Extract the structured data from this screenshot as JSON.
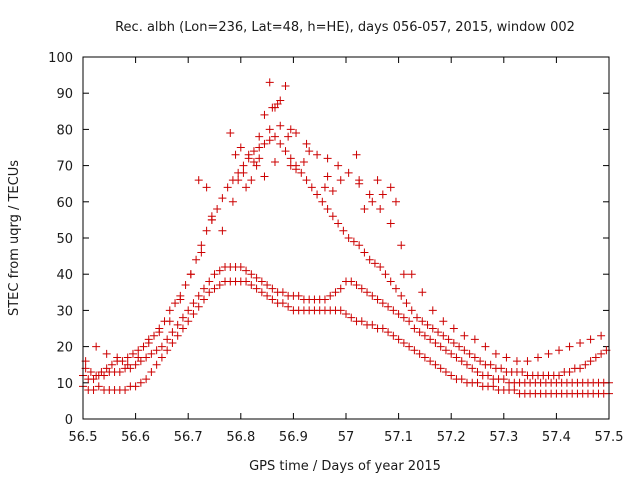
{
  "chart_data": {
    "type": "scatter",
    "title": "Rec. albh (Lon=236, Lat=48, h=HE), days 056-057, 2015, window 002",
    "xlabel": "GPS time / Days of year 2015",
    "ylabel": "STEC from uqrg / TECUs",
    "xlim": [
      56.5,
      57.5
    ],
    "ylim": [
      0,
      100
    ],
    "xticks": [
      56.5,
      56.6,
      56.7,
      56.8,
      56.9,
      57.0,
      57.1,
      57.2,
      57.3,
      57.4,
      57.5
    ],
    "xtick_labels": [
      "56.5",
      "56.6",
      "56.7",
      "56.8",
      "56.9",
      "57",
      "57.1",
      "57.2",
      "57.3",
      "57.4",
      "57.5"
    ],
    "yticks": [
      0,
      10,
      20,
      30,
      40,
      50,
      60,
      70,
      80,
      90,
      100
    ],
    "ytick_labels": [
      "0",
      "10",
      "20",
      "30",
      "40",
      "50",
      "60",
      "70",
      "80",
      "90",
      "100"
    ],
    "grid": false,
    "legend": "none",
    "marker": "plus",
    "color": "#cc0000",
    "series": [
      {
        "name": "STEC",
        "x": [
          56.5,
          56.51,
          56.52,
          56.53,
          56.54,
          56.55,
          56.56,
          56.57,
          56.58,
          56.59,
          56.6,
          56.61,
          56.62,
          56.63,
          56.64,
          56.65,
          56.66,
          56.67,
          56.68,
          56.69,
          56.7,
          56.71,
          56.72,
          56.73,
          56.74,
          56.75,
          56.76,
          56.77,
          56.78,
          56.79,
          56.8,
          56.81,
          56.82,
          56.83,
          56.84,
          56.85,
          56.86,
          56.87,
          56.88,
          56.89,
          56.9,
          56.91,
          56.92,
          56.93,
          56.94,
          56.95,
          56.96,
          56.97,
          56.98,
          56.99,
          57.0,
          57.01,
          57.02,
          57.03,
          57.04,
          57.05,
          57.06,
          57.07,
          57.08,
          57.09,
          57.1,
          57.11,
          57.12,
          57.13,
          57.14,
          57.15,
          57.16,
          57.17,
          57.18,
          57.19,
          57.2,
          57.21,
          57.22,
          57.23,
          57.24,
          57.25,
          57.26,
          57.27,
          57.28,
          57.29,
          57.3,
          57.31,
          57.32,
          57.33,
          57.34,
          57.35,
          57.36,
          57.37,
          57.38,
          57.39,
          57.4,
          57.41,
          57.42,
          57.43,
          57.44,
          57.45,
          57.46,
          57.47,
          57.48,
          57.49,
          57.5,
          56.5,
          56.51,
          56.52,
          56.53,
          56.54,
          56.55,
          56.56,
          56.57,
          56.58,
          56.59,
          56.6,
          56.61,
          56.62,
          56.63,
          56.64,
          56.65,
          56.66,
          56.67,
          56.68,
          56.69,
          56.7,
          56.71,
          56.72,
          56.73,
          56.74,
          56.75,
          56.76,
          56.77,
          56.78,
          56.79,
          56.8,
          56.81,
          56.82,
          56.83,
          56.84,
          56.85,
          56.86,
          56.87,
          56.88,
          56.89,
          56.9,
          56.91,
          56.92,
          56.93,
          56.94,
          56.95,
          56.96,
          56.97,
          56.98,
          56.99,
          57.0,
          57.01,
          57.02,
          57.03,
          57.04,
          57.05,
          57.06,
          57.07,
          57.08,
          57.09,
          57.1,
          57.11,
          57.12,
          57.13,
          57.14,
          57.15,
          57.16,
          57.17,
          57.18,
          57.19,
          57.2,
          57.21,
          57.22,
          57.23,
          57.24,
          57.25,
          57.26,
          57.27,
          57.28,
          57.29,
          57.3,
          57.31,
          57.32,
          57.33,
          57.34,
          57.35,
          57.36,
          57.37,
          57.38,
          57.39,
          57.4,
          57.41,
          57.42,
          57.43,
          57.44,
          57.45,
          57.46,
          57.47,
          57.48,
          57.49,
          57.5,
          56.505,
          56.515,
          56.525,
          56.535,
          56.545,
          56.555,
          56.565,
          56.575,
          56.585,
          56.595,
          56.605,
          56.615,
          56.625,
          56.635,
          56.645,
          56.655,
          56.665,
          56.675,
          56.685,
          56.695,
          56.705,
          56.715,
          56.725,
          56.735,
          56.745,
          56.755,
          56.765,
          56.775,
          56.785,
          56.795,
          56.805,
          56.815,
          56.825,
          56.835,
          56.845,
          56.855,
          56.865,
          56.875,
          56.885,
          56.895,
          56.905,
          56.915,
          56.925,
          56.935,
          56.945,
          56.955,
          56.965,
          56.975,
          56.985,
          56.995,
          57.005,
          57.015,
          57.025,
          57.035,
          57.045,
          57.055,
          57.065,
          57.075,
          57.085,
          57.095,
          57.105,
          57.115,
          57.125,
          57.135,
          57.145,
          57.155,
          57.165,
          57.175,
          57.185,
          57.195,
          57.205,
          57.215,
          57.225,
          57.235,
          57.245,
          57.255,
          57.265,
          57.275,
          57.285,
          57.295,
          57.305,
          57.315,
          57.325,
          57.335,
          57.345,
          57.355,
          57.365,
          57.375,
          57.385,
          57.395,
          57.405,
          57.415,
          57.425,
          57.435,
          57.445,
          57.455,
          57.465,
          57.475,
          57.485,
          57.495,
          56.505,
          56.525,
          56.545,
          56.565,
          56.585,
          56.605,
          56.625,
          56.645,
          56.665,
          56.685,
          56.705,
          56.725,
          56.745,
          56.765,
          56.785,
          56.795,
          56.805,
          56.815,
          56.825,
          56.835,
          56.845,
          56.855,
          56.865,
          56.875,
          56.885,
          56.895,
          56.905,
          56.925,
          56.945,
          56.965,
          56.985,
          57.005,
          57.025,
          57.045,
          57.065,
          57.085,
          57.105,
          57.125,
          57.145,
          57.165,
          57.185,
          57.205,
          57.225,
          57.245,
          57.265,
          57.285,
          57.305,
          57.325,
          57.345,
          57.365,
          57.385,
          57.405,
          57.425,
          57.445,
          57.465,
          57.485,
          56.72,
          56.735,
          56.745,
          56.78,
          56.79,
          56.8,
          56.81,
          56.82,
          56.83,
          56.835,
          56.845,
          56.855,
          56.86,
          56.865,
          56.87,
          56.875,
          56.89,
          56.895,
          56.905,
          56.92,
          56.93,
          56.96,
          56.965,
          56.975,
          56.99,
          57.02,
          57.025,
          57.035,
          57.05,
          57.06,
          57.07,
          57.085,
          57.095,
          57.11
        ],
        "y": [
          9,
          8,
          8,
          9,
          8,
          8,
          8,
          8,
          8,
          9,
          9,
          10,
          11,
          13,
          15,
          17,
          19,
          21,
          23,
          25,
          27,
          29,
          31,
          33,
          35,
          36,
          37,
          38,
          38,
          38,
          38,
          38,
          37,
          36,
          35,
          34,
          33,
          32,
          32,
          31,
          30,
          30,
          30,
          30,
          30,
          30,
          30,
          30,
          30,
          30,
          29,
          28,
          27,
          27,
          26,
          26,
          25,
          25,
          24,
          23,
          22,
          21,
          20,
          19,
          18,
          17,
          16,
          15,
          14,
          13,
          12,
          11,
          11,
          10,
          10,
          10,
          9,
          9,
          9,
          8,
          8,
          8,
          8,
          7,
          7,
          7,
          7,
          7,
          7,
          7,
          7,
          7,
          7,
          7,
          7,
          7,
          7,
          7,
          7,
          7,
          7,
          12,
          11,
          11,
          12,
          12,
          13,
          13,
          13,
          14,
          14,
          15,
          16,
          17,
          18,
          19,
          20,
          22,
          24,
          26,
          28,
          30,
          32,
          34,
          36,
          38,
          40,
          41,
          42,
          42,
          42,
          42,
          41,
          40,
          39,
          38,
          37,
          36,
          35,
          35,
          34,
          34,
          34,
          33,
          33,
          33,
          33,
          33,
          34,
          35,
          36,
          38,
          38,
          37,
          36,
          35,
          34,
          33,
          32,
          31,
          30,
          29,
          28,
          27,
          25,
          24,
          23,
          22,
          21,
          20,
          19,
          18,
          17,
          16,
          15,
          14,
          13,
          12,
          12,
          11,
          11,
          11,
          10,
          10,
          10,
          10,
          10,
          10,
          10,
          10,
          10,
          10,
          10,
          10,
          10,
          10,
          10,
          10,
          10,
          10,
          10,
          10,
          14,
          13,
          12,
          13,
          14,
          15,
          16,
          16,
          17,
          18,
          19,
          20,
          22,
          23,
          25,
          27,
          30,
          32,
          34,
          37,
          40,
          44,
          48,
          52,
          55,
          58,
          61,
          64,
          66,
          68,
          70,
          72,
          74,
          75,
          76,
          77,
          78,
          76,
          74,
          72,
          70,
          68,
          66,
          64,
          62,
          60,
          58,
          56,
          54,
          52,
          50,
          49,
          48,
          46,
          44,
          43,
          42,
          40,
          38,
          36,
          34,
          32,
          30,
          28,
          27,
          26,
          25,
          24,
          23,
          22,
          21,
          20,
          19,
          18,
          17,
          16,
          15,
          15,
          14,
          14,
          13,
          13,
          13,
          13,
          12,
          12,
          12,
          12,
          12,
          12,
          12,
          13,
          13,
          14,
          14,
          15,
          16,
          17,
          18,
          19,
          16,
          20,
          18,
          17,
          15,
          17,
          21,
          24,
          27,
          33,
          40,
          46,
          55,
          52,
          60,
          66,
          68,
          73,
          71,
          78,
          84,
          80,
          86,
          88,
          92,
          80,
          79,
          76,
          73,
          72,
          70,
          68,
          66,
          62,
          58,
          54,
          48,
          40,
          35,
          30,
          27,
          25,
          23,
          22,
          20,
          18,
          17,
          16,
          16,
          17,
          18,
          19,
          20,
          21,
          22,
          23,
          66,
          64,
          56,
          79,
          73,
          75,
          64,
          66,
          70,
          72,
          67,
          93,
          86,
          71,
          87,
          81,
          78,
          70,
          69,
          71,
          74,
          64,
          67,
          63,
          66,
          73,
          65,
          58,
          60,
          66,
          62,
          64,
          60,
          40
        ]
      }
    ]
  }
}
